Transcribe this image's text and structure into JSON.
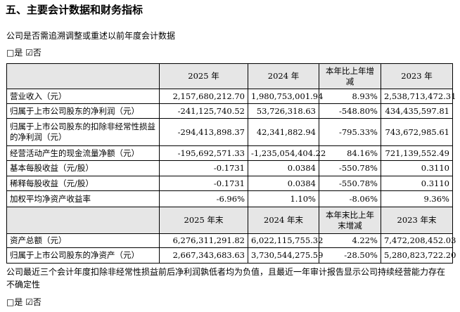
{
  "header": {
    "title": "五、主要会计数据和财务指标"
  },
  "question": "公司是否需追溯调整或重述以前年度会计数据",
  "answer": "□是 ☑否",
  "table": {
    "header": [
      "",
      "2025 年",
      "2024 年",
      "本年比上年增减",
      "2023 年"
    ],
    "rows": [
      [
        "营业收入（元）",
        "2,157,680,212.70",
        "1,980,753,001.94",
        "8.93%",
        "2,538,713,472.31"
      ],
      [
        "归属于上市公司股东的净利润（元）",
        "-241,125,740.52",
        "53,726,318.63",
        "-548.80%",
        "434,435,597.81"
      ],
      [
        "归属于上市公司股东的扣除非经常性损益的净利润（元）",
        "-294,413,898.37",
        "42,341,882.94",
        "-795.33%",
        "743,672,985.61"
      ],
      [
        "经营活动产生的现金流量净额（元）",
        "-195,692,571.33",
        "-1,235,054,404.22",
        "84.16%",
        "721,139,552.49"
      ],
      [
        "基本每股收益（元/股）",
        "-0.1731",
        "0.0384",
        "-550.78%",
        "0.3110"
      ],
      [
        "稀释每股收益（元/股）",
        "-0.1731",
        "0.0384",
        "-550.78%",
        "0.3110"
      ],
      [
        "加权平均净资产收益率",
        "-6.96%",
        "1.10%",
        "-8.06%",
        "9.36%"
      ]
    ],
    "header2": [
      "",
      "2025 年末",
      "2024 年末",
      "本年末比上年末增减",
      "2023 年末"
    ],
    "rows2": [
      [
        "资产总额（元）",
        "6,276,311,291.82",
        "6,022,115,755.32",
        "4.22%",
        "7,472,208,452.03"
      ],
      [
        "归属于上市公司股东的净资产（元）",
        "2,667,343,683.63",
        "3,730,544,275.59",
        "-28.50%",
        "5,280,823,722.20"
      ]
    ]
  },
  "note": "公司最近三个会计年度扣除非经常性损益前后净利润孰低者均为负值，且最近一年审计报告显示公司持续经营能力存在不确定性",
  "note_answer": "□是 ☑否"
}
